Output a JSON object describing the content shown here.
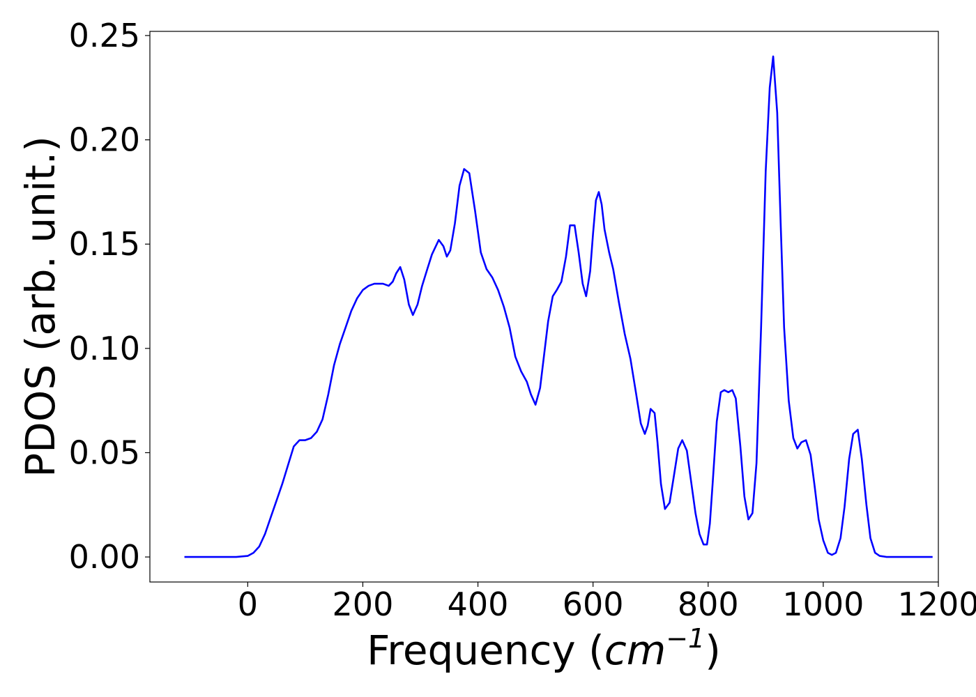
{
  "chart_data": {
    "type": "line",
    "title": "",
    "xlabel": "Frequency (",
    "xlabel_math": "cm",
    "xlabel_sup": "−1",
    "xlabel_close": ")",
    "ylabel": "PDOS (arb. unit.)",
    "xlim": [
      -170,
      1200
    ],
    "ylim": [
      -0.012,
      0.252
    ],
    "xticks": [
      0,
      200,
      400,
      600,
      800,
      1000,
      1200
    ],
    "yticks": [
      0.0,
      0.05,
      0.1,
      0.15,
      0.2,
      0.25
    ],
    "ytick_labels": [
      "0.00",
      "0.05",
      "0.10",
      "0.15",
      "0.20",
      "0.25"
    ],
    "grid": false,
    "line_color": "#0000ff",
    "series": [
      {
        "x": [
          -110,
          -60,
          -20,
          0,
          10,
          20,
          30,
          40,
          50,
          60,
          70,
          80,
          90,
          100,
          110,
          120,
          130,
          140,
          150,
          160,
          170,
          180,
          190,
          200,
          210,
          220,
          235,
          245,
          252,
          258,
          265,
          272,
          280,
          287,
          295,
          303,
          312,
          320,
          332,
          340,
          346,
          352,
          360,
          368,
          376,
          385,
          395,
          405,
          415,
          425,
          435,
          445,
          455,
          465,
          475,
          485,
          492,
          500,
          508,
          515,
          522,
          530,
          537,
          545,
          553,
          560,
          568,
          575,
          582,
          588,
          595,
          600,
          605,
          610,
          615,
          620,
          628,
          635,
          645,
          655,
          665,
          675,
          683,
          690,
          695,
          700,
          707,
          712,
          718,
          725,
          733,
          740,
          748,
          755,
          763,
          770,
          778,
          785,
          792,
          798,
          803,
          808,
          815,
          822,
          828,
          835,
          842,
          848,
          856,
          863,
          870,
          877,
          884,
          892,
          900,
          907,
          913,
          920,
          926,
          932,
          940,
          948,
          955,
          962,
          970,
          978,
          985,
          992,
          1000,
          1008,
          1015,
          1022,
          1030,
          1037,
          1045,
          1052,
          1060,
          1067,
          1075,
          1082,
          1090,
          1098,
          1110,
          1140,
          1190
        ],
        "y": [
          0.0,
          0.0,
          0.0,
          0.0005,
          0.002,
          0.005,
          0.011,
          0.019,
          0.027,
          0.035,
          0.044,
          0.053,
          0.056,
          0.056,
          0.057,
          0.06,
          0.066,
          0.078,
          0.092,
          0.102,
          0.11,
          0.118,
          0.124,
          0.128,
          0.13,
          0.131,
          0.131,
          0.13,
          0.132,
          0.136,
          0.139,
          0.133,
          0.121,
          0.116,
          0.121,
          0.13,
          0.138,
          0.145,
          0.152,
          0.149,
          0.144,
          0.147,
          0.16,
          0.178,
          0.186,
          0.184,
          0.166,
          0.146,
          0.138,
          0.134,
          0.128,
          0.12,
          0.11,
          0.096,
          0.089,
          0.084,
          0.078,
          0.073,
          0.081,
          0.097,
          0.113,
          0.125,
          0.128,
          0.132,
          0.144,
          0.159,
          0.159,
          0.146,
          0.131,
          0.125,
          0.137,
          0.155,
          0.171,
          0.175,
          0.169,
          0.157,
          0.146,
          0.138,
          0.122,
          0.107,
          0.095,
          0.078,
          0.064,
          0.059,
          0.063,
          0.071,
          0.069,
          0.055,
          0.035,
          0.023,
          0.026,
          0.038,
          0.052,
          0.056,
          0.051,
          0.037,
          0.021,
          0.011,
          0.006,
          0.006,
          0.016,
          0.036,
          0.065,
          0.079,
          0.08,
          0.079,
          0.08,
          0.076,
          0.053,
          0.029,
          0.018,
          0.021,
          0.045,
          0.11,
          0.185,
          0.225,
          0.24,
          0.213,
          0.16,
          0.11,
          0.075,
          0.057,
          0.052,
          0.055,
          0.056,
          0.049,
          0.034,
          0.018,
          0.008,
          0.002,
          0.001,
          0.002,
          0.009,
          0.024,
          0.047,
          0.059,
          0.061,
          0.047,
          0.025,
          0.009,
          0.002,
          0.0005,
          0.0,
          0.0,
          0.0
        ]
      }
    ]
  }
}
